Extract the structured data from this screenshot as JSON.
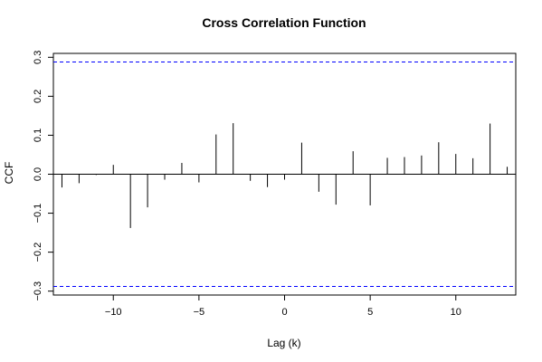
{
  "chart_data": {
    "type": "bar",
    "style": "vertical spikes (ACF/CCF style)",
    "title": "Cross Correlation Function",
    "xlabel": "Lag (k)",
    "ylabel": "CCF",
    "xlim": [
      -13.5,
      13.5
    ],
    "ylim": [
      -0.31,
      0.31
    ],
    "x_ticks": [
      -10,
      -5,
      0,
      5,
      10
    ],
    "x_tick_labels": [
      "−10",
      "−5",
      "0",
      "5",
      "10"
    ],
    "y_ticks": [
      -0.3,
      -0.2,
      -0.1,
      0.0,
      0.1,
      0.2,
      0.3
    ],
    "y_tick_labels": [
      "−0.3",
      "−0.2",
      "−0.1",
      "0.0",
      "0.1",
      "0.2",
      "0.3"
    ],
    "grid": false,
    "lags": [
      -13,
      -12,
      -11,
      -10,
      -9,
      -8,
      -7,
      -6,
      -5,
      -4,
      -3,
      -2,
      -1,
      0,
      1,
      2,
      3,
      4,
      5,
      6,
      7,
      8,
      9,
      10,
      11,
      12,
      13
    ],
    "values": [
      -0.034,
      -0.023,
      -0.002,
      0.024,
      -0.138,
      -0.085,
      -0.014,
      0.029,
      -0.021,
      0.102,
      0.131,
      -0.017,
      -0.033,
      -0.014,
      0.081,
      -0.045,
      -0.078,
      0.059,
      -0.08,
      0.042,
      0.044,
      0.048,
      0.082,
      0.052,
      0.041,
      0.13,
      0.019
    ],
    "confidence_bounds": [
      0.288,
      -0.288
    ],
    "colors": {
      "bars": "#000000",
      "bounds": "#0000ff",
      "zero_line": "#000000",
      "axes": "#000000"
    }
  }
}
